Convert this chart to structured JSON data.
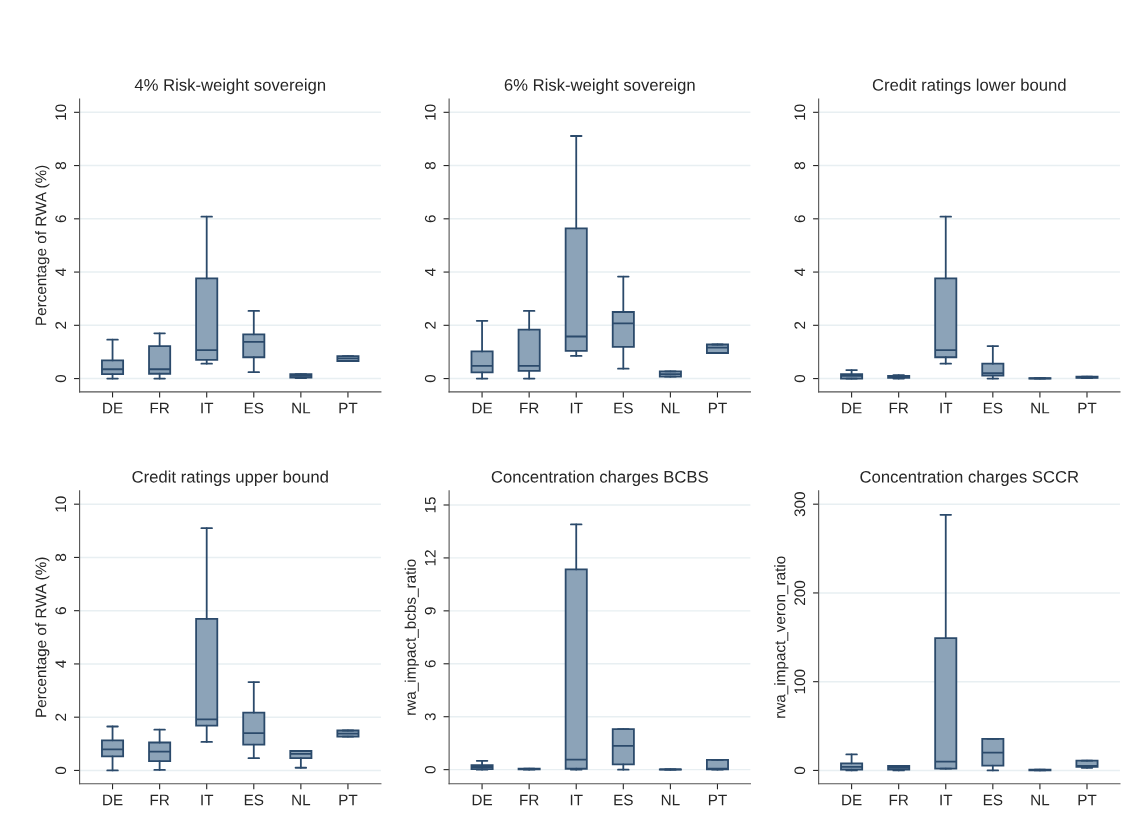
{
  "chart_data": [
    {
      "type": "box",
      "title": "4% Risk-weight sovereign",
      "ylabel": "Percentage of RWA (%)",
      "categories": [
        "DE",
        "FR",
        "IT",
        "ES",
        "NL",
        "PT"
      ],
      "ylim": [
        -0.5,
        10.5
      ],
      "yticks": [
        0,
        2,
        4,
        6,
        8,
        10
      ],
      "grid": "y",
      "series": [
        {
          "color": "#8ca3b8",
          "boxes": [
            {
              "low": 0,
              "q1": 0.17,
              "median": 0.35,
              "q3": 0.68,
              "high": 1.46
            },
            {
              "low": 0,
              "q1": 0.18,
              "median": 0.35,
              "q3": 1.22,
              "high": 1.7
            },
            {
              "low": 0.56,
              "q1": 0.7,
              "median": 1.07,
              "q3": 3.76,
              "high": 6.08
            },
            {
              "low": 0.24,
              "q1": 0.8,
              "median": 1.38,
              "q3": 1.66,
              "high": 2.54
            },
            {
              "low": 0.02,
              "q1": 0.04,
              "median": 0.1,
              "q3": 0.17,
              "high": 0.17
            },
            {
              "low": 0.66,
              "q1": 0.66,
              "median": 0.76,
              "q3": 0.84,
              "high": 0.84
            }
          ]
        }
      ]
    },
    {
      "type": "box",
      "title": "6% Risk-weight sovereign",
      "categories": [
        "DE",
        "FR",
        "IT",
        "ES",
        "NL",
        "PT"
      ],
      "ylim": [
        -0.5,
        10.5
      ],
      "yticks": [
        0,
        2,
        4,
        6,
        8,
        10
      ],
      "grid": "y",
      "series": [
        {
          "color": "#8ca3b8",
          "boxes": [
            {
              "low": 0,
              "q1": 0.23,
              "median": 0.48,
              "q3": 1.02,
              "high": 2.17
            },
            {
              "low": 0,
              "q1": 0.29,
              "median": 0.48,
              "q3": 1.84,
              "high": 2.54
            },
            {
              "low": 0.85,
              "q1": 1.04,
              "median": 1.58,
              "q3": 5.64,
              "high": 9.11
            },
            {
              "low": 0.37,
              "q1": 1.19,
              "median": 2.07,
              "q3": 2.5,
              "high": 3.83
            },
            {
              "low": 0.07,
              "q1": 0.07,
              "median": 0.17,
              "q3": 0.27,
              "high": 0.27
            },
            {
              "low": 0.96,
              "q1": 0.96,
              "median": 1.16,
              "q3": 1.28,
              "high": 1.28
            }
          ]
        }
      ]
    },
    {
      "type": "box",
      "title": "Credit ratings lower bound",
      "categories": [
        "DE",
        "FR",
        "IT",
        "ES",
        "NL",
        "PT"
      ],
      "ylim": [
        -0.5,
        10.5
      ],
      "yticks": [
        0,
        2,
        4,
        6,
        8,
        10
      ],
      "grid": "y",
      "series": [
        {
          "color": "#8ca3b8",
          "boxes": [
            {
              "low": 0,
              "q1": 0.0,
              "median": 0.1,
              "q3": 0.17,
              "high": 0.32
            },
            {
              "low": 0,
              "q1": 0.03,
              "median": 0.06,
              "q3": 0.1,
              "high": 0.13
            },
            {
              "low": 0.56,
              "q1": 0.8,
              "median": 1.07,
              "q3": 3.76,
              "high": 6.08
            },
            {
              "low": 0,
              "q1": 0.11,
              "median": 0.2,
              "q3": 0.56,
              "high": 1.22
            },
            {
              "low": 0,
              "q1": 0,
              "median": 0.01,
              "q3": 0.02,
              "high": 0.02
            },
            {
              "low": 0.02,
              "q1": 0.03,
              "median": 0.05,
              "q3": 0.07,
              "high": 0.07
            }
          ]
        }
      ]
    },
    {
      "type": "box",
      "title": "Credit ratings upper bound",
      "ylabel": "Percentage of RWA (%)",
      "categories": [
        "DE",
        "FR",
        "IT",
        "ES",
        "NL",
        "PT"
      ],
      "ylim": [
        -0.5,
        10.5
      ],
      "yticks": [
        0,
        2,
        4,
        6,
        8,
        10
      ],
      "grid": "y",
      "series": [
        {
          "color": "#8ca3b8",
          "boxes": [
            {
              "low": 0,
              "q1": 0.53,
              "median": 0.79,
              "q3": 1.13,
              "high": 1.65
            },
            {
              "low": 0.02,
              "q1": 0.35,
              "median": 0.71,
              "q3": 1.05,
              "high": 1.53
            },
            {
              "low": 1.07,
              "q1": 1.68,
              "median": 1.92,
              "q3": 5.69,
              "high": 9.1
            },
            {
              "low": 0.46,
              "q1": 0.97,
              "median": 1.4,
              "q3": 2.17,
              "high": 3.32
            },
            {
              "low": 0.1,
              "q1": 0.46,
              "median": 0.62,
              "q3": 0.73,
              "high": 0.73
            },
            {
              "low": 1.27,
              "q1": 1.27,
              "median": 1.38,
              "q3": 1.5,
              "high": 1.5
            }
          ]
        }
      ]
    },
    {
      "type": "box",
      "title": "Concentration charges BCBS",
      "ylabel": "rwa_impact_bcbs_ratio",
      "categories": [
        "DE",
        "FR",
        "IT",
        "ES",
        "NL",
        "PT"
      ],
      "ylim": [
        -0.8,
        15.8
      ],
      "yticks": [
        0,
        3,
        6,
        9,
        12,
        15
      ],
      "grid": "y",
      "series": [
        {
          "color": "#8ca3b8",
          "boxes": [
            {
              "low": 0,
              "q1": 0.03,
              "median": 0.15,
              "q3": 0.25,
              "high": 0.5
            },
            {
              "low": 0,
              "q1": 0.01,
              "median": 0.03,
              "q3": 0.05,
              "high": 0.05
            },
            {
              "low": 0,
              "q1": 0.05,
              "median": 0.57,
              "q3": 11.35,
              "high": 13.9
            },
            {
              "low": 0,
              "q1": 0.3,
              "median": 1.35,
              "q3": 2.3,
              "high": 2.3
            },
            {
              "low": 0,
              "q1": 0,
              "median": 0.01,
              "q3": 0.02,
              "high": 0.02
            },
            {
              "low": 0,
              "q1": 0.02,
              "median": 0.05,
              "q3": 0.55,
              "high": 0.55
            }
          ]
        }
      ]
    },
    {
      "type": "box",
      "title": "Concentration charges SCCR",
      "ylabel": "rwa_impact_veron_ratio",
      "categories": [
        "DE",
        "FR",
        "IT",
        "ES",
        "NL",
        "PT"
      ],
      "ylim": [
        -15,
        315
      ],
      "yticks": [
        0,
        100,
        200,
        300
      ],
      "grid": "y",
      "series": [
        {
          "color": "#8ca3b8",
          "boxes": [
            {
              "low": 0,
              "q1": 1,
              "median": 4,
              "q3": 8,
              "high": 18
            },
            {
              "low": 0,
              "q1": 1,
              "median": 3,
              "q3": 5,
              "high": 5
            },
            {
              "low": 2,
              "q1": 2,
              "median": 10,
              "q3": 149,
              "high": 288
            },
            {
              "low": 0,
              "q1": 5.5,
              "median": 20,
              "q3": 35.5,
              "high": 35.5
            },
            {
              "low": 0,
              "q1": 0,
              "median": 0.5,
              "q3": 1,
              "high": 1
            },
            {
              "low": 3,
              "q1": 4,
              "median": 5,
              "q3": 11,
              "high": 11
            }
          ]
        }
      ]
    }
  ]
}
